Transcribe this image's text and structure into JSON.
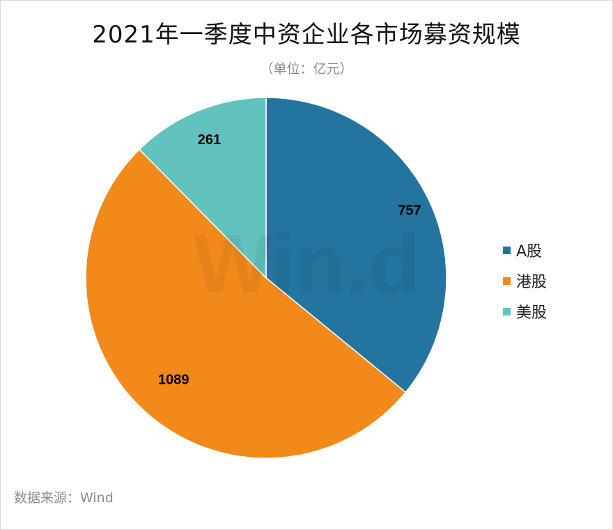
{
  "title": "2021年一季度中资企业各市场募资规模",
  "subtitle": "（单位：亿元）",
  "source": "数据来源：Wind",
  "watermark": "Win.d",
  "chart_data": {
    "type": "pie",
    "categories": [
      "A股",
      "港股",
      "美股"
    ],
    "values": [
      757,
      1089,
      261
    ],
    "colors": [
      "#2474a0",
      "#f28a1b",
      "#62c2bd"
    ],
    "start_angle_deg": 0,
    "direction": "clockwise",
    "legend_position": "right"
  }
}
